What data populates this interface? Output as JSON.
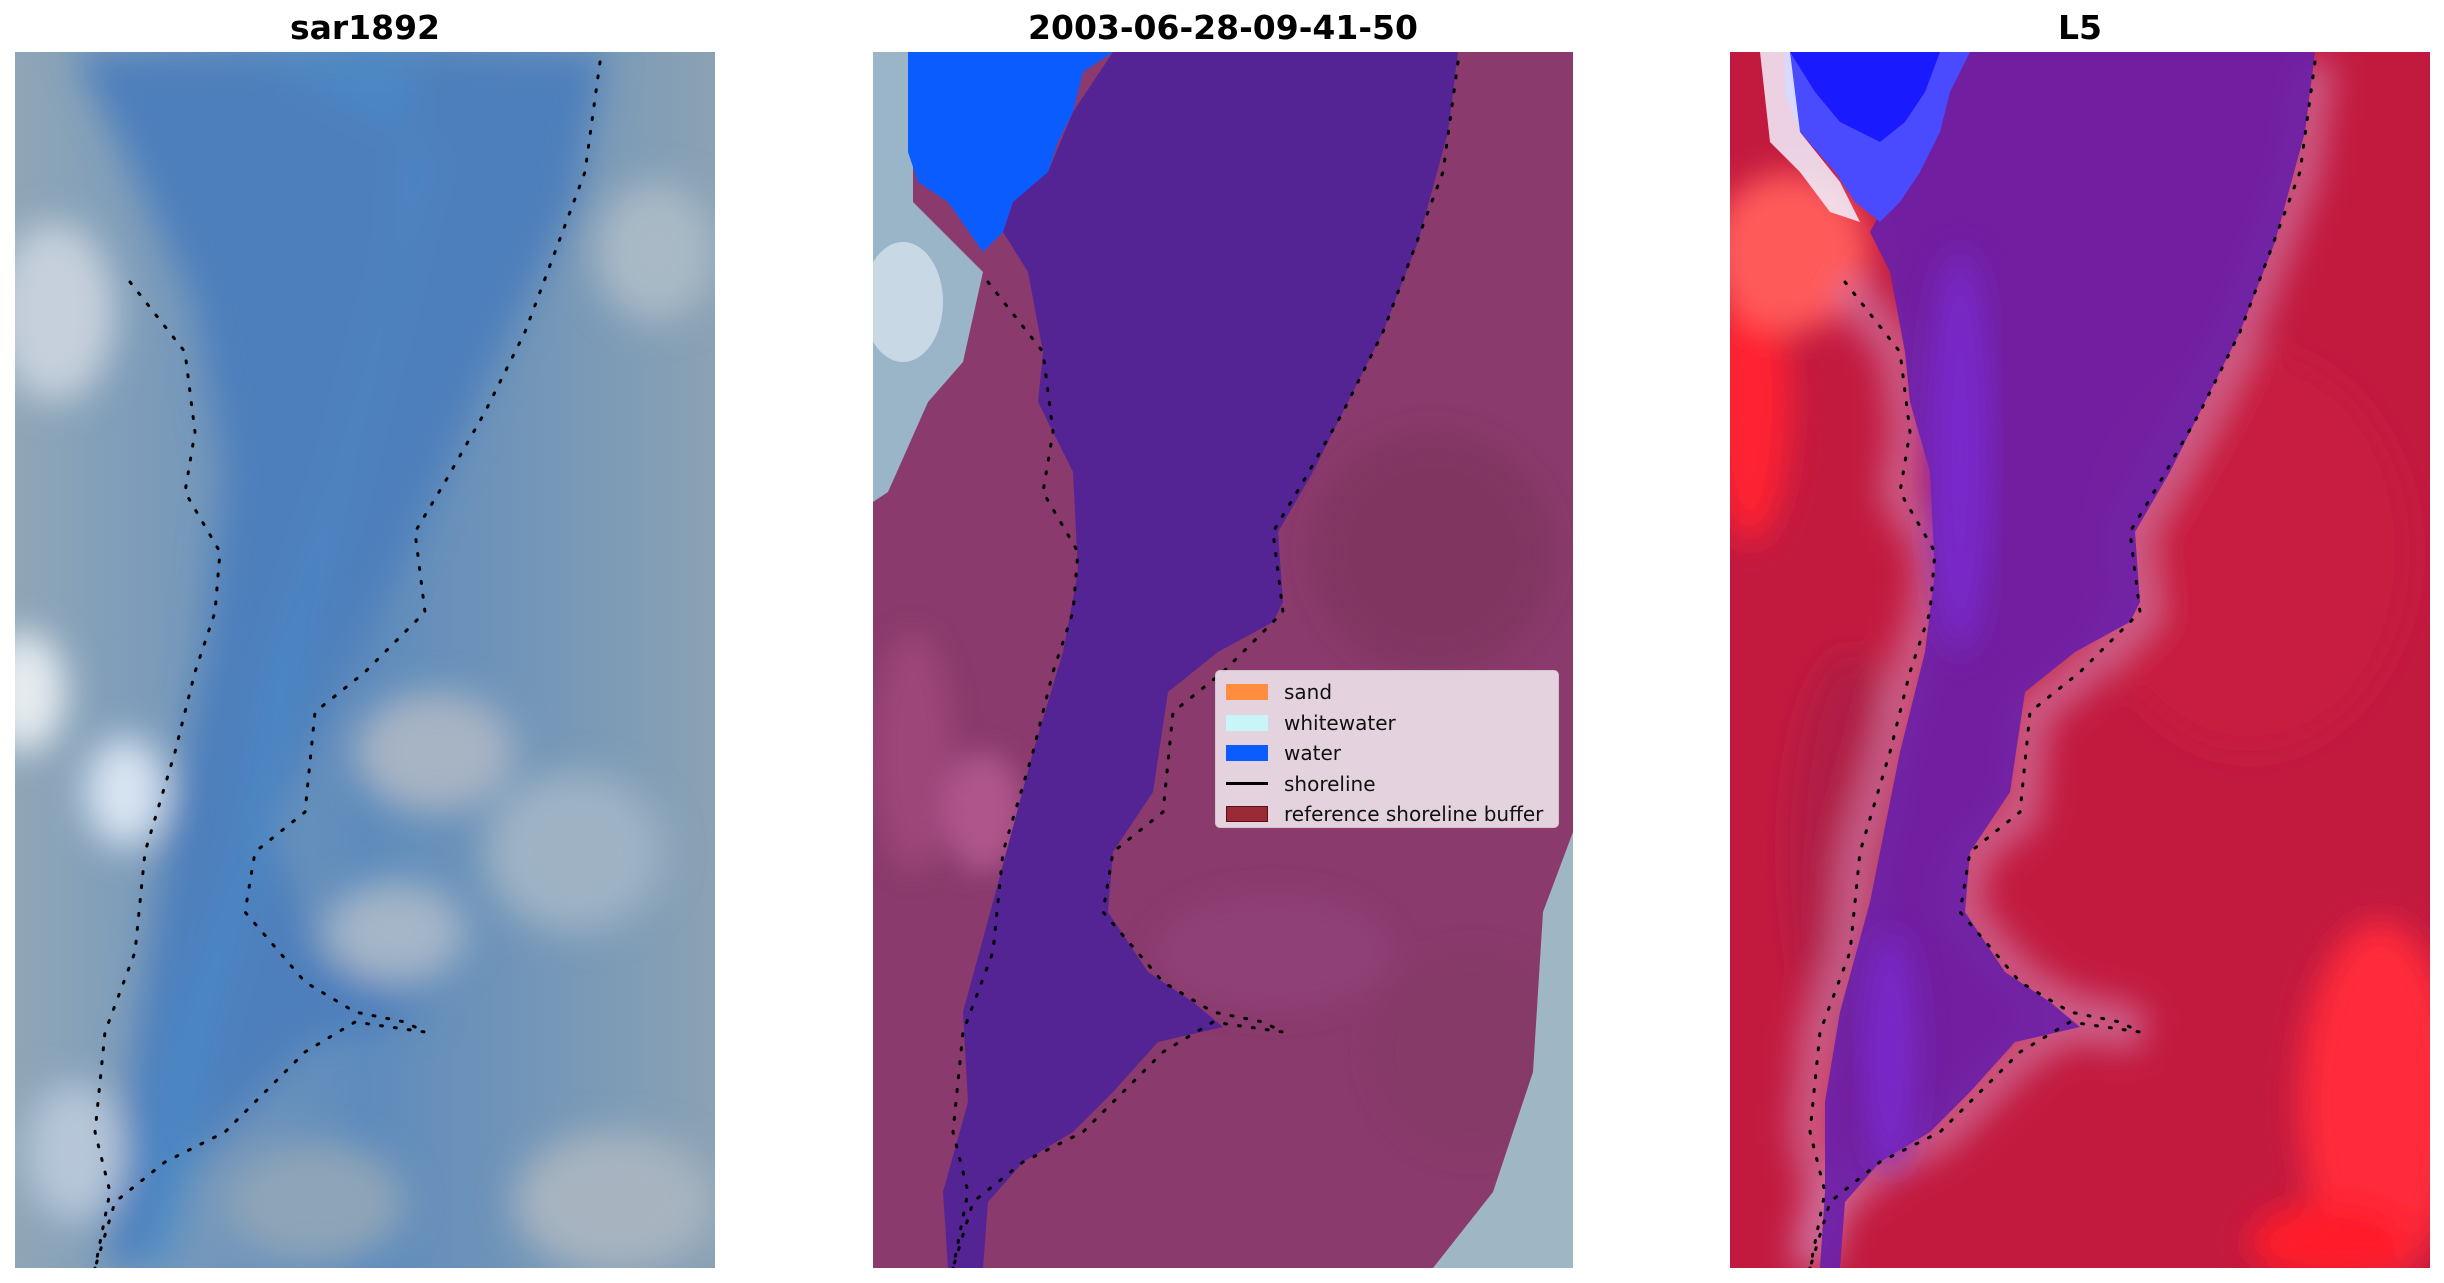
{
  "panels": [
    {
      "title": "sar1892"
    },
    {
      "title": "2003-06-28-09-41-50"
    },
    {
      "title": "L5"
    }
  ],
  "legend": {
    "items": [
      {
        "label": "sand",
        "color": "#ff8c3f",
        "kind": "patch"
      },
      {
        "label": "whitewater",
        "color": "#c8f5f8",
        "kind": "patch"
      },
      {
        "label": "water",
        "color": "#0a5cff",
        "kind": "patch"
      },
      {
        "label": "shoreline",
        "color": "#000000",
        "kind": "line"
      },
      {
        "label": "reference shoreline buffer",
        "color": "#9a2a36",
        "kind": "patch"
      }
    ]
  },
  "colors": {
    "rgb_water": "#4a7fb5",
    "rgb_land": "#8a9fb1",
    "class_water": "#542494",
    "class_land": "#8a3a6c",
    "class_blue": "#0a5cff",
    "class_white": "#c8d8e4",
    "index_red": "#c21a3f",
    "index_purple": "#6a1fa8",
    "index_blue": "#1a1aff"
  }
}
